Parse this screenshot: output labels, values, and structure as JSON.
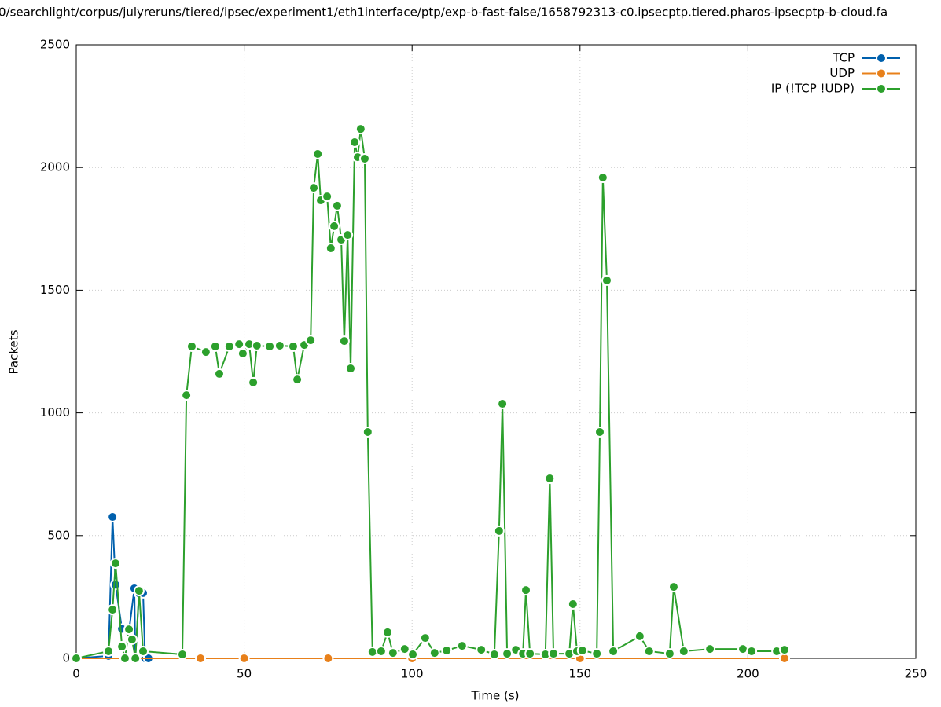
{
  "chart_data": {
    "type": "line",
    "title": "0/searchlight/corpus/julyreruns/tiered/ipsec/experiment1/eth1interface/ptp/exp-b-fast-false/1658792313-c0.ipsecptp.tiered.pharos-ipsecptp-b-cloud.fa",
    "x_label": "Time (s)",
    "y_label": "Packets",
    "xlim": [
      0,
      250
    ],
    "xticks": [
      0,
      50,
      100,
      150,
      200,
      250
    ],
    "ylim": [
      0,
      2500
    ],
    "yticks": [
      0,
      500,
      1000,
      1500,
      2000,
      2500
    ],
    "grid": true,
    "legend": "top-right",
    "series": [
      {
        "name": "TCP",
        "color": "#0060ad",
        "x": [
          0,
          9.6,
          10.8,
          11.7,
          13.6,
          15.7,
          17.3,
          17.6,
          18.7,
          19.9,
          20.5,
          21.5,
          210.9
        ],
        "values": [
          0,
          10,
          576,
          300,
          120,
          110,
          285,
          0,
          265,
          266,
          0,
          0,
          0
        ]
      },
      {
        "name": "UDP",
        "color": "#e8801a",
        "x": [
          0,
          37,
          50,
          75,
          100,
          150,
          210.9
        ],
        "values": [
          0,
          0,
          0,
          0,
          0,
          0,
          0
        ]
      },
      {
        "name": "IP (!TCP  !UDP)",
        "color": "#2ca02c",
        "x": [
          0,
          9.6,
          10.8,
          11.7,
          13.6,
          14.5,
          15.7,
          16.6,
          17.6,
          18.7,
          19.9,
          31.6,
          32.8,
          34.4,
          38.6,
          41.4,
          42.6,
          45.6,
          48.5,
          49.6,
          51.5,
          52.7,
          53.8,
          57.6,
          60.6,
          64.6,
          65.8,
          67.9,
          69.8,
          70.7,
          71.9,
          72.8,
          74.7,
          75.8,
          76.8,
          77.7,
          78.9,
          79.8,
          80.8,
          81.7,
          82.9,
          83.8,
          84.7,
          85.9,
          86.8,
          88.2,
          90.8,
          92.7,
          94.3,
          97.8,
          100.2,
          103.9,
          106.7,
          110.3,
          114.9,
          120.6,
          124.5,
          125.9,
          126.9,
          128.3,
          130.9,
          133.0,
          133.9,
          135.1,
          139.7,
          141.0,
          142.1,
          146.8,
          147.9,
          149.1,
          150.7,
          155.0,
          155.9,
          156.8,
          158.0,
          159.9,
          167.8,
          170.6,
          176.7,
          177.9,
          180.9,
          188.7,
          198.5,
          201.1,
          208.6,
          210.9
        ],
        "values": [
          0,
          29,
          198,
          387,
          48,
          0,
          118,
          77,
          0,
          275,
          29,
          16,
          1072,
          1271,
          1248,
          1271,
          1159,
          1271,
          1280,
          1242,
          1280,
          1124,
          1274,
          1271,
          1274,
          1271,
          1136,
          1277,
          1296,
          1917,
          2055,
          1866,
          1882,
          1671,
          1761,
          1844,
          1706,
          1293,
          1725,
          1181,
          2103,
          2042,
          2157,
          2036,
          922,
          26,
          29,
          106,
          22,
          38,
          16,
          83,
          22,
          32,
          51,
          35,
          16,
          519,
          1037,
          19,
          35,
          19,
          278,
          19,
          16,
          733,
          19,
          19,
          221,
          29,
          32,
          19,
          922,
          1959,
          1540,
          29,
          90,
          29,
          19,
          291,
          29,
          38,
          38,
          29,
          29,
          35
        ]
      }
    ]
  }
}
